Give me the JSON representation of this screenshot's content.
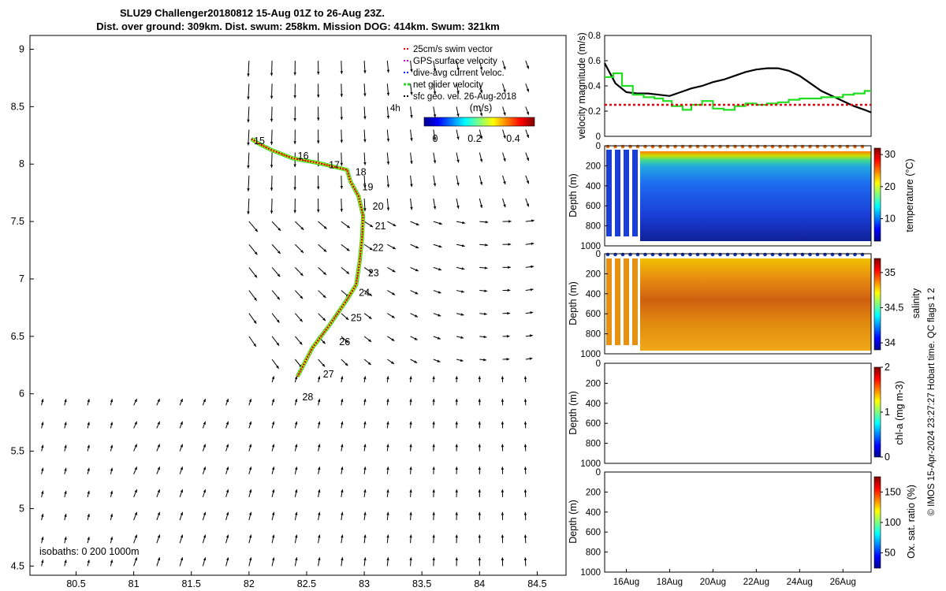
{
  "title": {
    "line1": "SLU29 Challenger20180812 15-Aug 01Z to 26-Aug 23Z.",
    "line2": "Dist. over ground: 309km. Dist. swum: 258km. Mission DOG: 414km. Swum: 321km"
  },
  "legend": {
    "items": [
      {
        "label": "25cm/s swim vector",
        "color": "#e8000b"
      },
      {
        "label": "GPS surface velocity",
        "color": "#d000d0"
      },
      {
        "label": "dive-avg current veloc.",
        "color": "#0000ff"
      },
      {
        "label": "net glider velocity",
        "color": "#22dd22"
      },
      {
        "label": "sfc geo. vel. 26-Aug-2018",
        "color": "#000000"
      }
    ],
    "time_label": "4h",
    "colorbar_unit": "(m/s)",
    "colorbar_ticks": [
      "0",
      "0.2",
      "0.4"
    ]
  },
  "isobaths_label": "isobaths: 0  200  1000m",
  "copyright": "© IMOS 15-Apr-2024 23:27:27 Hobart time. QC flags 1  2",
  "chart_data": [
    {
      "type": "map-track",
      "x_ticks": [
        "80.5",
        "81",
        "81.5",
        "82",
        "82.5",
        "83",
        "83.5",
        "84",
        "84.5"
      ],
      "y_ticks": [
        "9",
        "8.5",
        "8",
        "7.5",
        "7",
        "6.5",
        "6",
        "5.5",
        "5",
        "4.5"
      ],
      "xlim": [
        80.1,
        84.75
      ],
      "ylim": [
        4.42,
        9.12
      ],
      "track_lon": [
        82.02,
        82.1,
        82.2,
        82.38,
        82.6,
        82.85,
        82.88,
        82.95,
        82.99,
        82.98,
        82.96,
        82.93,
        82.85,
        82.7,
        82.55,
        82.42
      ],
      "track_lat": [
        8.22,
        8.17,
        8.12,
        8.05,
        8.01,
        7.95,
        7.85,
        7.72,
        7.55,
        7.35,
        7.15,
        6.95,
        6.82,
        6.6,
        6.4,
        6.15
      ],
      "day_labels": [
        {
          "day": "15",
          "lon": 82.09,
          "lat": 8.2
        },
        {
          "day": "16",
          "lon": 82.47,
          "lat": 8.07
        },
        {
          "day": "17",
          "lon": 82.74,
          "lat": 7.99
        },
        {
          "day": "18",
          "lon": 82.97,
          "lat": 7.93
        },
        {
          "day": "19",
          "lon": 83.03,
          "lat": 7.8
        },
        {
          "day": "20",
          "lon": 83.12,
          "lat": 7.63
        },
        {
          "day": "21",
          "lon": 83.14,
          "lat": 7.46
        },
        {
          "day": "22",
          "lon": 83.12,
          "lat": 7.27
        },
        {
          "day": "23",
          "lon": 83.08,
          "lat": 7.05
        },
        {
          "day": "24",
          "lon": 83.0,
          "lat": 6.88
        },
        {
          "day": "25",
          "lon": 82.93,
          "lat": 6.66
        },
        {
          "day": "26",
          "lon": 82.83,
          "lat": 6.45
        },
        {
          "day": "27",
          "lon": 82.69,
          "lat": 6.17
        },
        {
          "day": "28",
          "lon": 82.51,
          "lat": 5.97
        }
      ]
    },
    {
      "type": "line",
      "ylabel": "velocity magnitude (m/s)",
      "ylim": [
        0,
        0.8
      ],
      "y_ticks": [
        "0",
        "0.2",
        "0.4",
        "0.6",
        "0.8"
      ],
      "x_days": [
        15,
        27.3
      ],
      "series": [
        {
          "name": "sfc geo. vel.",
          "color": "#000000",
          "x": [
            15.0,
            15.5,
            16.0,
            16.5,
            17.0,
            17.5,
            18.0,
            18.5,
            19.0,
            19.5,
            20.0,
            20.5,
            21.0,
            21.5,
            22.0,
            22.5,
            23.0,
            23.5,
            24.0,
            24.5,
            25.0,
            25.5,
            26.0,
            26.5,
            27.0,
            27.3
          ],
          "y": [
            0.58,
            0.42,
            0.35,
            0.34,
            0.34,
            0.33,
            0.32,
            0.35,
            0.38,
            0.4,
            0.43,
            0.45,
            0.48,
            0.51,
            0.53,
            0.54,
            0.54,
            0.52,
            0.48,
            0.42,
            0.36,
            0.32,
            0.28,
            0.24,
            0.21,
            0.19
          ]
        },
        {
          "name": "net glider velocity",
          "color": "#22dd22",
          "x": [
            15.0,
            15.4,
            15.8,
            16.3,
            16.8,
            17.3,
            17.7,
            18.1,
            18.6,
            19.0,
            19.5,
            20.0,
            20.5,
            21.0,
            21.5,
            22.0,
            22.5,
            23.0,
            23.5,
            24.0,
            24.5,
            25.0,
            25.5,
            26.0,
            26.5,
            27.0,
            27.3
          ],
          "y": [
            0.47,
            0.5,
            0.4,
            0.33,
            0.31,
            0.3,
            0.28,
            0.24,
            0.21,
            0.25,
            0.28,
            0.22,
            0.21,
            0.24,
            0.26,
            0.25,
            0.26,
            0.27,
            0.29,
            0.3,
            0.3,
            0.31,
            0.31,
            0.33,
            0.34,
            0.36,
            0.36
          ]
        },
        {
          "name": "25cm/s swim vector",
          "color": "#e8000b",
          "x": [
            15.0,
            27.3
          ],
          "y": [
            0.25,
            0.25
          ]
        }
      ]
    },
    {
      "type": "heatmap",
      "ylabel": "Depth (m)",
      "clabel": "temperature (°C)",
      "y_ticks": [
        "0",
        "200",
        "400",
        "600",
        "800",
        "1000"
      ],
      "c_ticks": [
        "30",
        "20",
        "10"
      ],
      "crange": [
        3,
        32
      ]
    },
    {
      "type": "heatmap",
      "ylabel": "Depth (m)",
      "clabel": "salinity",
      "y_ticks": [
        "0",
        "200",
        "400",
        "600",
        "800",
        "1000"
      ],
      "c_ticks": [
        "35",
        "34.5",
        "34"
      ],
      "crange": [
        33.9,
        35.2
      ]
    },
    {
      "type": "heatmap",
      "ylabel": "Depth (m)",
      "clabel": "chl-a (mg m-3)",
      "y_ticks": [
        "0",
        "200",
        "400",
        "600",
        "800",
        "1000"
      ],
      "c_ticks": [
        "2",
        "1",
        "0"
      ],
      "crange": [
        0,
        2
      ]
    },
    {
      "type": "heatmap",
      "ylabel": "Depth (m)",
      "clabel": "Ox. sat. ratio (%)",
      "y_ticks": [
        "0",
        "200",
        "400",
        "600",
        "800",
        "1000"
      ],
      "c_ticks": [
        "150",
        "100",
        "50"
      ],
      "crange": [
        25,
        175
      ],
      "x_ticks": [
        "16Aug",
        "18Aug",
        "20Aug",
        "22Aug",
        "24Aug",
        "26Aug"
      ]
    }
  ]
}
